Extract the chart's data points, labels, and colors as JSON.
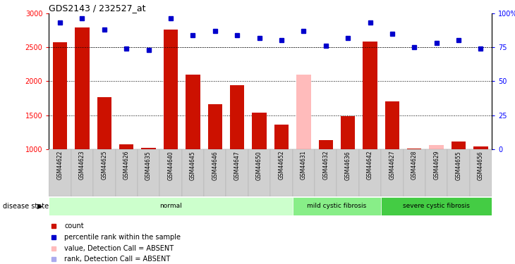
{
  "title": "GDS2143 / 232527_at",
  "samples": [
    "GSM44622",
    "GSM44623",
    "GSM44625",
    "GSM44626",
    "GSM44635",
    "GSM44640",
    "GSM44645",
    "GSM44646",
    "GSM44647",
    "GSM44650",
    "GSM44652",
    "GSM44631",
    "GSM44632",
    "GSM44636",
    "GSM44642",
    "GSM44627",
    "GSM44628",
    "GSM44629",
    "GSM44655",
    "GSM44656"
  ],
  "counts": [
    2570,
    2790,
    1760,
    1075,
    1020,
    2760,
    2100,
    1660,
    1940,
    1540,
    1360,
    2100,
    1130,
    1490,
    2580,
    1700,
    1010,
    1060,
    1110,
    1040
  ],
  "ranks": [
    93,
    96,
    88,
    74,
    73,
    96,
    84,
    87,
    84,
    82,
    80,
    87,
    76,
    82,
    93,
    85,
    75,
    78,
    80,
    74
  ],
  "absent_count": [
    false,
    false,
    false,
    false,
    false,
    false,
    false,
    false,
    false,
    false,
    false,
    true,
    false,
    false,
    false,
    false,
    false,
    true,
    false,
    false
  ],
  "absent_rank": [
    false,
    false,
    false,
    false,
    false,
    false,
    false,
    false,
    false,
    false,
    false,
    false,
    false,
    false,
    false,
    false,
    false,
    false,
    false,
    false
  ],
  "group_defs": [
    {
      "name": "normal",
      "start": 0,
      "end": 11,
      "color": "#ccffcc"
    },
    {
      "name": "mild cystic fibrosis",
      "start": 11,
      "end": 15,
      "color": "#88ee88"
    },
    {
      "name": "severe cystic fibrosis",
      "start": 15,
      "end": 20,
      "color": "#44cc44"
    }
  ],
  "bar_color_present": "#cc1100",
  "bar_color_absent": "#ffbbbb",
  "rank_color_present": "#0000cc",
  "rank_color_absent": "#aaaaee",
  "ylim_left": [
    1000,
    3000
  ],
  "ylim_right": [
    0,
    100
  ],
  "yticks_left": [
    1000,
    1500,
    2000,
    2500,
    3000
  ],
  "yticks_right": [
    0,
    25,
    50,
    75,
    100
  ],
  "hgrid_lines": [
    1500,
    2000,
    2500
  ],
  "legend_items": [
    {
      "label": "count",
      "color": "#cc1100"
    },
    {
      "label": "percentile rank within the sample",
      "color": "#0000cc"
    },
    {
      "label": "value, Detection Call = ABSENT",
      "color": "#ffbbbb"
    },
    {
      "label": "rank, Detection Call = ABSENT",
      "color": "#aaaaee"
    }
  ],
  "disease_state_label": "disease state"
}
